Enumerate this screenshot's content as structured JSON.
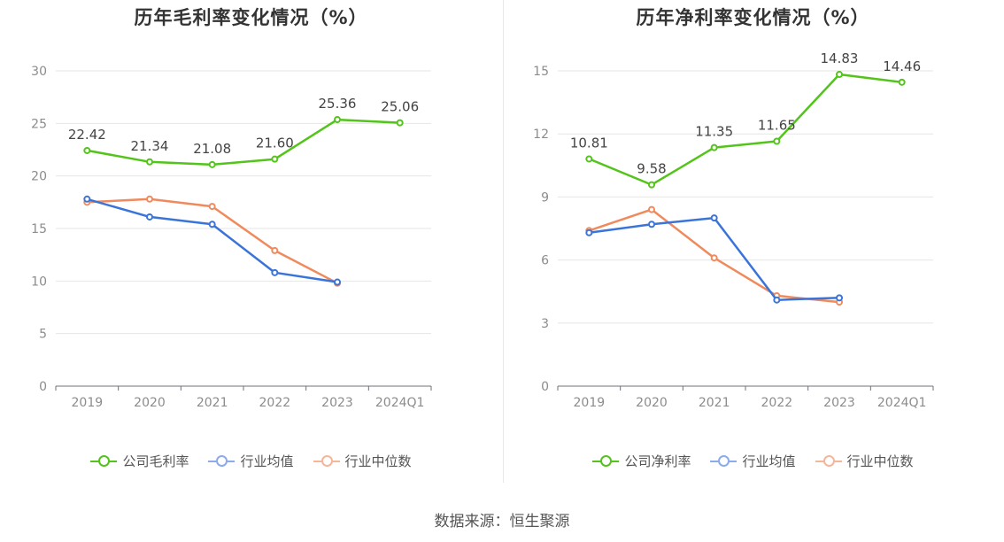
{
  "source": "数据来源：恒生聚源",
  "chart_data": [
    {
      "type": "line",
      "title": "历年毛利率变化情况（%）",
      "categories": [
        "2019",
        "2020",
        "2021",
        "2022",
        "2023",
        "2024Q1"
      ],
      "ylim": [
        0,
        30
      ],
      "yticks": [
        0,
        5,
        10,
        15,
        20,
        25,
        30
      ],
      "grid": true,
      "legend_position": "bottom",
      "series": [
        {
          "name": "公司毛利率",
          "color": "#52c41a",
          "values": [
            22.42,
            21.34,
            21.08,
            21.6,
            25.36,
            25.06
          ],
          "labels": [
            "22.42",
            "21.34",
            "21.08",
            "21.60",
            "25.36",
            "25.06"
          ]
        },
        {
          "name": "行业均值",
          "color": "#3b74d9",
          "values": [
            17.8,
            16.1,
            15.4,
            10.8,
            9.9,
            null
          ],
          "labels": []
        },
        {
          "name": "行业中位数",
          "color": "#f08a5d",
          "values": [
            17.5,
            17.8,
            17.1,
            12.9,
            9.8,
            null
          ],
          "labels": []
        }
      ]
    },
    {
      "type": "line",
      "title": "历年净利率变化情况（%）",
      "categories": [
        "2019",
        "2020",
        "2021",
        "2022",
        "2023",
        "2024Q1"
      ],
      "ylim": [
        0,
        15
      ],
      "yticks": [
        0,
        3,
        6,
        9,
        12,
        15
      ],
      "grid": true,
      "legend_position": "bottom",
      "series": [
        {
          "name": "公司净利率",
          "color": "#52c41a",
          "values": [
            10.81,
            9.58,
            11.35,
            11.65,
            14.83,
            14.46
          ],
          "labels": [
            "10.81",
            "9.58",
            "11.35",
            "11.65",
            "14.83",
            "14.46"
          ]
        },
        {
          "name": "行业均值",
          "color": "#3b74d9",
          "values": [
            7.3,
            7.7,
            8.0,
            4.1,
            4.2,
            null
          ],
          "labels": []
        },
        {
          "name": "行业中位数",
          "color": "#f08a5d",
          "values": [
            7.4,
            8.4,
            6.1,
            4.3,
            4.0,
            null
          ],
          "labels": []
        }
      ]
    }
  ]
}
